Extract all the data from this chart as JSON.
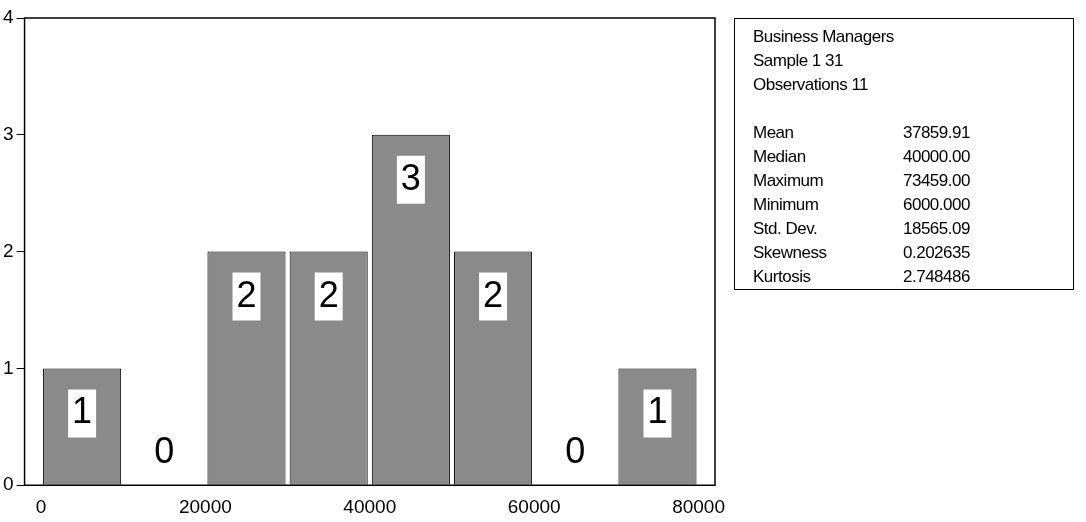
{
  "chart_data": [
    {
      "type": "histogram",
      "bins": [
        0,
        10000,
        20000,
        30000,
        40000,
        50000,
        60000,
        70000,
        80000
      ],
      "values": [
        1,
        0,
        2,
        2,
        3,
        2,
        0,
        1
      ],
      "color": "#8a8a8a",
      "xlim": [
        -2000,
        82000
      ],
      "xticks": [
        0,
        20000,
        40000,
        60000,
        80000
      ],
      "ylim": [
        0,
        4
      ],
      "yticks": [
        0,
        1,
        2,
        3,
        4
      ],
      "grid": false,
      "legend": false,
      "data_labels": true
    },
    {
      "type": "other",
      "title": "Business Managers",
      "annotations": [
        "Sample 1 31",
        "Observations 11",
        "Mean  37859.91",
        "Median  40000.00",
        "Maximum  73459.00",
        "Minimum  6000.000",
        "Std. Dev.  18565.09",
        "Skewness  0.202635",
        "Kurtosis  2.748486"
      ]
    }
  ]
}
